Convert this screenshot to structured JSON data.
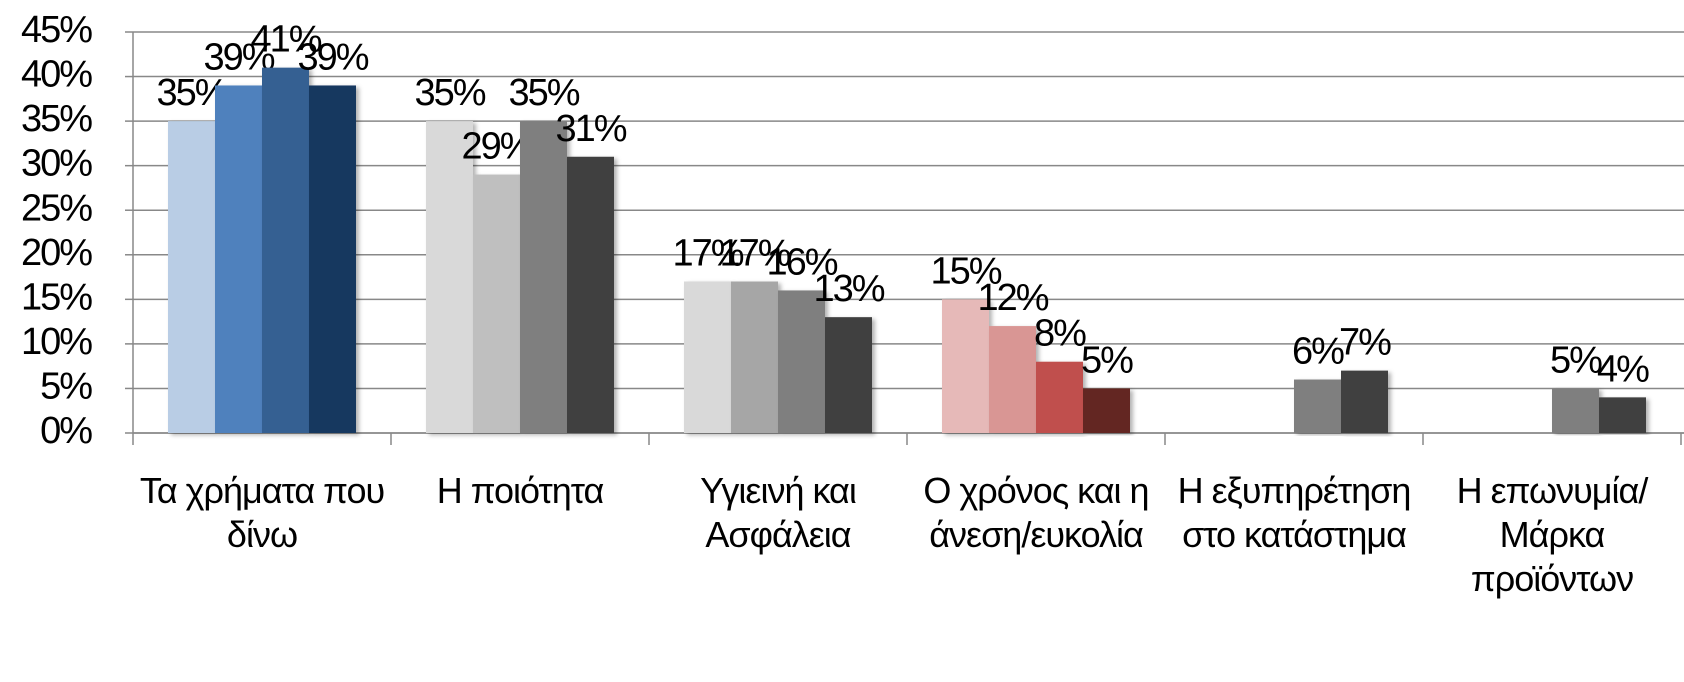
{
  "chart_data": {
    "type": "bar",
    "categories": [
      "Τα χρήματα που δίνω",
      "Η ποιότητα",
      "Υγιεινή και Ασφάλεια",
      "Ο χρόνος και η άνεση/ευκολία",
      "Η εξυπηρέτηση στο κατάστημα",
      "Η επωνυμία/ Μάρκα προϊόντων"
    ],
    "series": [
      {
        "values": [
          35,
          35,
          17,
          15,
          null,
          null
        ],
        "value_labels": [
          "35%",
          "35%",
          "17%",
          "15%",
          null,
          null
        ],
        "colors": [
          "#b9cde5",
          "#d9d9d9",
          "#d9d9d9",
          "#e6b9b8",
          null,
          null
        ]
      },
      {
        "values": [
          39,
          29,
          17,
          12,
          null,
          null
        ],
        "value_labels": [
          "39%",
          "29%",
          "17%",
          "12%",
          null,
          null
        ],
        "colors": [
          "#4f81bd",
          "#bfbfbf",
          "#a6a6a6",
          "#d99694",
          null,
          null
        ]
      },
      {
        "values": [
          41,
          35,
          16,
          8,
          6,
          5
        ],
        "value_labels": [
          "41%",
          "35%",
          "16%",
          "8%",
          "6%",
          "5%"
        ],
        "colors": [
          "#366092",
          "#7f7f7f",
          "#7f7f7f",
          "#c0504d",
          "#7f7f7f",
          "#7f7f7f"
        ]
      },
      {
        "values": [
          39,
          31,
          13,
          5,
          7,
          4
        ],
        "value_labels": [
          "39%",
          "31%",
          "13%",
          "5%",
          "7%",
          "4%"
        ],
        "colors": [
          "#17375e",
          "#404040",
          "#404040",
          "#632523",
          "#404040",
          "#404040"
        ]
      }
    ],
    "ylim": [
      0,
      45
    ],
    "yticks": [
      {
        "value": 0,
        "label": "0%"
      },
      {
        "value": 5,
        "label": "5%"
      },
      {
        "value": 10,
        "label": "10%"
      },
      {
        "value": 15,
        "label": "15%"
      },
      {
        "value": 20,
        "label": "20%"
      },
      {
        "value": 25,
        "label": "25%"
      },
      {
        "value": 30,
        "label": "30%"
      },
      {
        "value": 35,
        "label": "35%"
      },
      {
        "value": 40,
        "label": "40%"
      },
      {
        "value": 45,
        "label": "45%"
      }
    ],
    "grid": true
  }
}
